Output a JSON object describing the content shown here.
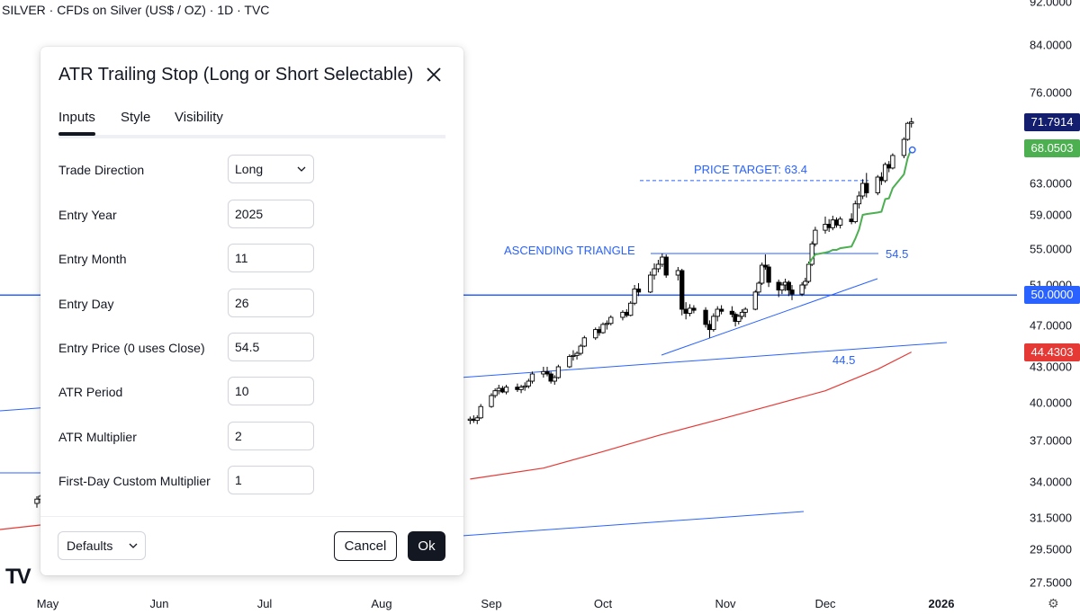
{
  "symbol_title": "SILVER · CFDs on Silver (US$ / OZ) · 1D · TVC",
  "colors": {
    "candle_up_fill": "#ffffff",
    "candle_down_fill": "#000000",
    "candle_wick": "#000000",
    "trailing_stop": "#4caf50",
    "ma_line": "#e53935",
    "trend_lines": "#2962ff",
    "horizontal_50": "#2962ff",
    "badge_price": "#131e6e",
    "badge_stop": "#4caf50",
    "badge_50": "#2962ff",
    "badge_ma": "#e53935",
    "annotation_text": "#2962ff"
  },
  "price_scale": {
    "ticks": [
      "92.0000",
      "84.0000",
      "76.0000",
      "71.7914",
      "68.0503",
      "63.0000",
      "59.0000",
      "55.0000",
      "51.0000",
      "50.0000",
      "47.0000",
      "44.4303",
      "43.0000",
      "40.0000",
      "37.0000",
      "34.0000",
      "31.5000",
      "29.5000",
      "27.5000"
    ],
    "plain_ticks": [
      "92.0000",
      "84.0000",
      "76.0000",
      "63.0000",
      "59.0000",
      "55.0000",
      "51.0000",
      "47.0000",
      "43.0000",
      "40.0000",
      "37.0000",
      "34.0000",
      "31.5000",
      "29.5000",
      "27.5000"
    ],
    "badges": {
      "last_price": "71.7914",
      "trailing_stop": "68.0503",
      "horizontal_line": "50.0000",
      "moving_average": "44.4303"
    }
  },
  "time_axis": [
    "May",
    "Jun",
    "Jul",
    "Aug",
    "Sep",
    "Oct",
    "Nov",
    "Dec",
    "2026"
  ],
  "annotations": {
    "price_target": "PRICE TARGET: 63.4",
    "ascending_triangle": "ASCENDING TRIANGLE",
    "level_545": "54.5",
    "level_445": "44.5"
  },
  "dialog": {
    "title": "ATR Trailing Stop (Long or Short Selectable)",
    "tabs": [
      "Inputs",
      "Style",
      "Visibility"
    ],
    "active_tab": "Inputs",
    "inputs": [
      {
        "label": "Trade Direction",
        "value": "Long",
        "type": "select"
      },
      {
        "label": "Entry Year",
        "value": "2025",
        "type": "text"
      },
      {
        "label": "Entry Month",
        "value": "11",
        "type": "text"
      },
      {
        "label": "Entry Day",
        "value": "26",
        "type": "text"
      },
      {
        "label": "Entry Price (0 uses Close)",
        "value": "54.5",
        "type": "text"
      },
      {
        "label": "ATR Period",
        "value": "10",
        "type": "text"
      },
      {
        "label": "ATR Multiplier",
        "value": "2",
        "type": "text"
      },
      {
        "label": "First-Day Custom Multiplier",
        "value": "1",
        "type": "text"
      }
    ],
    "defaults_label": "Defaults",
    "cancel_label": "Cancel",
    "ok_label": "Ok"
  },
  "chart_data": {
    "type": "candlestick",
    "title": "SILVER · CFDs on Silver (US$ / OZ) · 1D · TVC",
    "xlabel": "",
    "ylabel": "",
    "x_ticks": [
      "May",
      "Jun",
      "Jul",
      "Aug",
      "Sep",
      "Oct",
      "Nov",
      "Dec",
      "2026"
    ],
    "ylim": [
      27.5,
      92
    ],
    "horizontal_level": 50.0,
    "last_price": 71.7914,
    "trailing_stop_last": 68.0503,
    "moving_average_last": 44.4303,
    "price_target": 63.4,
    "resistance_level": 54.5,
    "support_label": 44.5,
    "candles": [
      {
        "date": "2025-04-28",
        "o": 32.5,
        "h": 33.0,
        "l": 32.2,
        "c": 32.8
      },
      {
        "date": "2025-04-29",
        "o": 32.8,
        "h": 33.1,
        "l": 32.5,
        "c": 33.0
      },
      {
        "date": "2025-04-30",
        "o": 33.0,
        "h": 33.4,
        "l": 32.6,
        "c": 32.7
      },
      {
        "date": "2025-05-01",
        "o": 32.7,
        "h": 33.5,
        "l": 32.5,
        "c": 33.3
      },
      {
        "date": "2025-05-02",
        "o": 33.3,
        "h": 33.6,
        "l": 32.9,
        "c": 33.0
      },
      {
        "date": "2025-05-05",
        "o": 33.0,
        "h": 33.4,
        "l": 32.7,
        "c": 33.2
      },
      {
        "date": "2025-05-06",
        "o": 33.2,
        "h": 33.5,
        "l": 32.9,
        "c": 33.1
      },
      {
        "date": "2025-05-07",
        "o": 33.1,
        "h": 33.6,
        "l": 32.9,
        "c": 33.3
      },
      {
        "date": "2025-08-26",
        "o": 38.6,
        "h": 38.9,
        "l": 38.3,
        "c": 38.7
      },
      {
        "date": "2025-08-27",
        "o": 38.7,
        "h": 39.0,
        "l": 38.4,
        "c": 38.6
      },
      {
        "date": "2025-08-28",
        "o": 38.6,
        "h": 39.0,
        "l": 38.3,
        "c": 38.8
      },
      {
        "date": "2025-08-29",
        "o": 38.8,
        "h": 39.9,
        "l": 38.7,
        "c": 39.7
      },
      {
        "date": "2025-09-01",
        "o": 39.7,
        "h": 40.8,
        "l": 39.6,
        "c": 40.6
      },
      {
        "date": "2025-09-02",
        "o": 40.6,
        "h": 41.2,
        "l": 40.4,
        "c": 41.0
      },
      {
        "date": "2025-09-03",
        "o": 41.0,
        "h": 41.5,
        "l": 40.7,
        "c": 41.2
      },
      {
        "date": "2025-09-04",
        "o": 41.2,
        "h": 41.4,
        "l": 40.8,
        "c": 40.9
      },
      {
        "date": "2025-09-05",
        "o": 40.9,
        "h": 41.5,
        "l": 40.7,
        "c": 41.3
      },
      {
        "date": "2025-09-08",
        "o": 41.3,
        "h": 41.6,
        "l": 40.9,
        "c": 41.1
      },
      {
        "date": "2025-09-09",
        "o": 41.1,
        "h": 41.5,
        "l": 40.8,
        "c": 41.3
      },
      {
        "date": "2025-09-10",
        "o": 41.3,
        "h": 41.7,
        "l": 41.0,
        "c": 41.4
      },
      {
        "date": "2025-09-11",
        "o": 41.4,
        "h": 42.0,
        "l": 41.2,
        "c": 41.8
      },
      {
        "date": "2025-09-12",
        "o": 41.8,
        "h": 42.6,
        "l": 41.6,
        "c": 42.4
      },
      {
        "date": "2025-09-15",
        "o": 42.4,
        "h": 43.0,
        "l": 42.1,
        "c": 42.6
      },
      {
        "date": "2025-09-16",
        "o": 42.6,
        "h": 43.0,
        "l": 42.2,
        "c": 42.4
      },
      {
        "date": "2025-09-17",
        "o": 42.4,
        "h": 42.6,
        "l": 41.6,
        "c": 41.8
      },
      {
        "date": "2025-09-18",
        "o": 41.8,
        "h": 42.3,
        "l": 41.5,
        "c": 42.1
      },
      {
        "date": "2025-09-19",
        "o": 42.1,
        "h": 43.2,
        "l": 42.0,
        "c": 43.0
      },
      {
        "date": "2025-09-22",
        "o": 43.0,
        "h": 44.2,
        "l": 42.9,
        "c": 44.0
      },
      {
        "date": "2025-09-23",
        "o": 44.0,
        "h": 44.6,
        "l": 43.6,
        "c": 44.1
      },
      {
        "date": "2025-09-24",
        "o": 44.1,
        "h": 44.5,
        "l": 43.7,
        "c": 44.3
      },
      {
        "date": "2025-09-25",
        "o": 44.3,
        "h": 45.2,
        "l": 44.1,
        "c": 45.0
      },
      {
        "date": "2025-09-26",
        "o": 45.0,
        "h": 46.0,
        "l": 44.9,
        "c": 45.8
      },
      {
        "date": "2025-09-29",
        "o": 45.8,
        "h": 46.8,
        "l": 45.6,
        "c": 46.6
      },
      {
        "date": "2025-09-30",
        "o": 46.6,
        "h": 46.9,
        "l": 46.0,
        "c": 46.3
      },
      {
        "date": "2025-10-01",
        "o": 46.3,
        "h": 47.3,
        "l": 46.2,
        "c": 47.1
      },
      {
        "date": "2025-10-02",
        "o": 47.1,
        "h": 47.5,
        "l": 46.6,
        "c": 47.2
      },
      {
        "date": "2025-10-03",
        "o": 47.2,
        "h": 48.0,
        "l": 47.0,
        "c": 47.8
      },
      {
        "date": "2025-10-06",
        "o": 47.8,
        "h": 48.5,
        "l": 47.5,
        "c": 48.3
      },
      {
        "date": "2025-10-07",
        "o": 48.3,
        "h": 48.6,
        "l": 47.8,
        "c": 48.0
      },
      {
        "date": "2025-10-08",
        "o": 48.0,
        "h": 49.4,
        "l": 47.9,
        "c": 49.2
      },
      {
        "date": "2025-10-09",
        "o": 49.2,
        "h": 51.0,
        "l": 49.0,
        "c": 50.6
      },
      {
        "date": "2025-10-10",
        "o": 50.6,
        "h": 51.2,
        "l": 49.9,
        "c": 50.3
      },
      {
        "date": "2025-10-13",
        "o": 50.3,
        "h": 52.5,
        "l": 50.2,
        "c": 52.1
      },
      {
        "date": "2025-10-14",
        "o": 52.1,
        "h": 53.4,
        "l": 51.6,
        "c": 52.8
      },
      {
        "date": "2025-10-15",
        "o": 52.8,
        "h": 53.8,
        "l": 52.4,
        "c": 53.3
      },
      {
        "date": "2025-10-16",
        "o": 53.3,
        "h": 54.5,
        "l": 53.0,
        "c": 54.1
      },
      {
        "date": "2025-10-17",
        "o": 54.1,
        "h": 54.4,
        "l": 51.8,
        "c": 52.1
      },
      {
        "date": "2025-10-20",
        "o": 52.1,
        "h": 53.0,
        "l": 51.5,
        "c": 52.6
      },
      {
        "date": "2025-10-21",
        "o": 52.6,
        "h": 52.8,
        "l": 48.0,
        "c": 48.6
      },
      {
        "date": "2025-10-22",
        "o": 48.6,
        "h": 49.3,
        "l": 47.6,
        "c": 48.2
      },
      {
        "date": "2025-10-23",
        "o": 48.2,
        "h": 49.1,
        "l": 47.9,
        "c": 48.7
      },
      {
        "date": "2025-10-24",
        "o": 48.7,
        "h": 49.0,
        "l": 48.2,
        "c": 48.5
      },
      {
        "date": "2025-10-27",
        "o": 48.5,
        "h": 48.8,
        "l": 46.8,
        "c": 47.1
      },
      {
        "date": "2025-10-28",
        "o": 47.1,
        "h": 47.5,
        "l": 45.8,
        "c": 46.6
      },
      {
        "date": "2025-10-29",
        "o": 46.6,
        "h": 48.2,
        "l": 46.4,
        "c": 47.9
      },
      {
        "date": "2025-10-30",
        "o": 47.9,
        "h": 48.9,
        "l": 47.4,
        "c": 48.6
      },
      {
        "date": "2025-10-31",
        "o": 48.6,
        "h": 49.0,
        "l": 48.1,
        "c": 48.4
      },
      {
        "date": "2025-11-03",
        "o": 48.4,
        "h": 48.9,
        "l": 47.8,
        "c": 48.1
      },
      {
        "date": "2025-11-04",
        "o": 48.1,
        "h": 48.3,
        "l": 46.9,
        "c": 47.4
      },
      {
        "date": "2025-11-05",
        "o": 47.4,
        "h": 48.1,
        "l": 47.1,
        "c": 47.9
      },
      {
        "date": "2025-11-06",
        "o": 47.9,
        "h": 48.6,
        "l": 47.6,
        "c": 48.3
      },
      {
        "date": "2025-11-07",
        "o": 48.3,
        "h": 48.8,
        "l": 47.8,
        "c": 48.6
      },
      {
        "date": "2025-11-10",
        "o": 48.6,
        "h": 50.5,
        "l": 48.5,
        "c": 50.3
      },
      {
        "date": "2025-11-11",
        "o": 50.3,
        "h": 51.4,
        "l": 50.0,
        "c": 51.2
      },
      {
        "date": "2025-11-12",
        "o": 51.2,
        "h": 53.5,
        "l": 51.0,
        "c": 53.2
      },
      {
        "date": "2025-11-13",
        "o": 53.2,
        "h": 54.4,
        "l": 52.7,
        "c": 53.0
      },
      {
        "date": "2025-11-14",
        "o": 53.0,
        "h": 53.3,
        "l": 50.8,
        "c": 51.3
      },
      {
        "date": "2025-11-17",
        "o": 51.3,
        "h": 51.6,
        "l": 49.8,
        "c": 50.5
      },
      {
        "date": "2025-11-18",
        "o": 50.5,
        "h": 51.3,
        "l": 50.1,
        "c": 51.0
      },
      {
        "date": "2025-11-19",
        "o": 51.0,
        "h": 51.7,
        "l": 50.4,
        "c": 51.3
      },
      {
        "date": "2025-11-20",
        "o": 51.3,
        "h": 51.5,
        "l": 49.9,
        "c": 50.5
      },
      {
        "date": "2025-11-21",
        "o": 50.5,
        "h": 51.0,
        "l": 49.5,
        "c": 50.1
      },
      {
        "date": "2025-11-24",
        "o": 50.1,
        "h": 51.3,
        "l": 49.9,
        "c": 51.0
      },
      {
        "date": "2025-11-25",
        "o": 51.0,
        "h": 51.8,
        "l": 50.6,
        "c": 51.4
      },
      {
        "date": "2025-11-26",
        "o": 51.4,
        "h": 53.6,
        "l": 51.2,
        "c": 53.3
      },
      {
        "date": "2025-11-27",
        "o": 53.3,
        "h": 55.9,
        "l": 53.1,
        "c": 55.6
      },
      {
        "date": "2025-11-28",
        "o": 55.6,
        "h": 57.6,
        "l": 55.3,
        "c": 57.2
      },
      {
        "date": "2025-12-01",
        "o": 57.2,
        "h": 58.8,
        "l": 56.8,
        "c": 57.9
      },
      {
        "date": "2025-12-02",
        "o": 57.9,
        "h": 58.5,
        "l": 57.0,
        "c": 57.5
      },
      {
        "date": "2025-12-03",
        "o": 57.5,
        "h": 58.9,
        "l": 57.2,
        "c": 58.4
      },
      {
        "date": "2025-12-04",
        "o": 58.4,
        "h": 58.7,
        "l": 57.5,
        "c": 57.8
      },
      {
        "date": "2025-12-05",
        "o": 57.8,
        "h": 58.8,
        "l": 57.4,
        "c": 58.5
      },
      {
        "date": "2025-12-08",
        "o": 58.5,
        "h": 59.2,
        "l": 57.9,
        "c": 58.2
      },
      {
        "date": "2025-12-09",
        "o": 58.2,
        "h": 60.8,
        "l": 58.0,
        "c": 60.4
      },
      {
        "date": "2025-12-10",
        "o": 60.4,
        "h": 62.0,
        "l": 59.8,
        "c": 61.4
      },
      {
        "date": "2025-12-11",
        "o": 61.4,
        "h": 63.6,
        "l": 61.0,
        "c": 63.0
      },
      {
        "date": "2025-12-12",
        "o": 63.0,
        "h": 64.5,
        "l": 61.2,
        "c": 61.8
      },
      {
        "date": "2025-12-15",
        "o": 61.8,
        "h": 64.2,
        "l": 61.5,
        "c": 63.9
      },
      {
        "date": "2025-12-16",
        "o": 63.9,
        "h": 64.6,
        "l": 62.8,
        "c": 63.4
      },
      {
        "date": "2025-12-17",
        "o": 63.4,
        "h": 66.0,
        "l": 63.1,
        "c": 65.7
      },
      {
        "date": "2025-12-18",
        "o": 65.7,
        "h": 66.2,
        "l": 64.6,
        "c": 65.2
      },
      {
        "date": "2025-12-19",
        "o": 65.2,
        "h": 67.3,
        "l": 65.0,
        "c": 67.0
      },
      {
        "date": "2025-12-22",
        "o": 67.0,
        "h": 69.6,
        "l": 66.6,
        "c": 69.3
      },
      {
        "date": "2025-12-23",
        "o": 69.3,
        "h": 71.8,
        "l": 69.1,
        "c": 71.6
      },
      {
        "date": "2025-12-24",
        "o": 71.6,
        "h": 72.4,
        "l": 71.0,
        "c": 71.8
      }
    ],
    "trailing_stop": [
      {
        "date": "2025-11-26",
        "v": 53.3
      },
      {
        "date": "2025-11-27",
        "v": 53.9
      },
      {
        "date": "2025-11-28",
        "v": 54.4
      },
      {
        "date": "2025-12-01",
        "v": 54.6
      },
      {
        "date": "2025-12-02",
        "v": 54.7
      },
      {
        "date": "2025-12-03",
        "v": 54.9
      },
      {
        "date": "2025-12-04",
        "v": 54.9
      },
      {
        "date": "2025-12-05",
        "v": 55.1
      },
      {
        "date": "2025-12-08",
        "v": 55.3
      },
      {
        "date": "2025-12-09",
        "v": 56.2
      },
      {
        "date": "2025-12-10",
        "v": 57.3
      },
      {
        "date": "2025-12-11",
        "v": 59.0
      },
      {
        "date": "2025-12-12",
        "v": 59.1
      },
      {
        "date": "2025-12-15",
        "v": 59.3
      },
      {
        "date": "2025-12-16",
        "v": 59.4
      },
      {
        "date": "2025-12-17",
        "v": 61.0
      },
      {
        "date": "2025-12-18",
        "v": 61.1
      },
      {
        "date": "2025-12-19",
        "v": 62.4
      },
      {
        "date": "2025-12-22",
        "v": 64.3
      },
      {
        "date": "2025-12-23",
        "v": 66.6
      },
      {
        "date": "2025-12-24",
        "v": 68.05
      }
    ],
    "moving_average": [
      {
        "date": "2025-04-28",
        "v": 30.7
      },
      {
        "date": "2025-08-26",
        "v": 34.2
      },
      {
        "date": "2025-09-15",
        "v": 35.0
      },
      {
        "date": "2025-10-01",
        "v": 36.2
      },
      {
        "date": "2025-10-15",
        "v": 37.4
      },
      {
        "date": "2025-11-01",
        "v": 38.8
      },
      {
        "date": "2025-11-15",
        "v": 39.8
      },
      {
        "date": "2025-12-01",
        "v": 41.0
      },
      {
        "date": "2025-12-15",
        "v": 42.8
      },
      {
        "date": "2025-12-24",
        "v": 44.43
      }
    ]
  }
}
